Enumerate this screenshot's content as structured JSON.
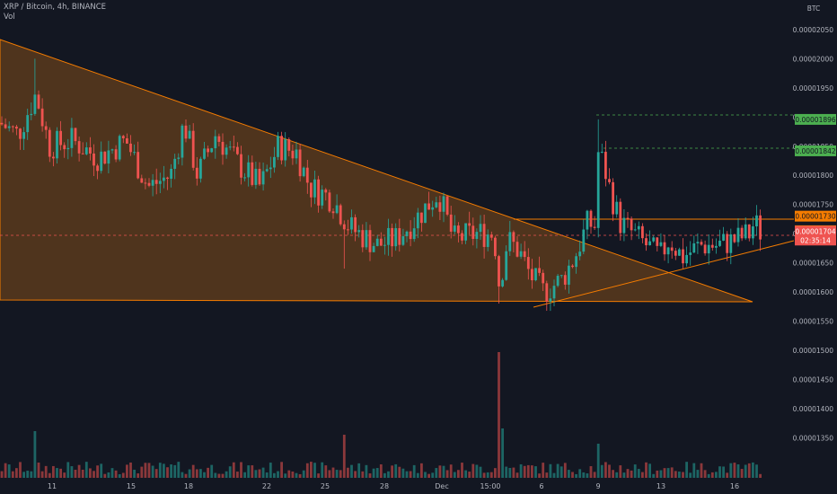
{
  "header": {
    "title": "XRP / Bitcoin, 4h, BINANCE",
    "volume_label": "Vol"
  },
  "chart_data": {
    "type": "candlestick",
    "symbol": "XRP / Bitcoin",
    "interval": "4h",
    "exchange": "BINANCE",
    "currency": "BTC",
    "ylim": [
      1.315e-05,
      2.07e-05
    ],
    "y_ticks": [
      "0.00002050",
      "0.00002000",
      "0.00001950",
      "0.00001900",
      "0.00001850",
      "0.00001800",
      "0.00001750",
      "0.00001700",
      "0.00001650",
      "0.00001600",
      "0.00001550",
      "0.00001500",
      "0.00001450",
      "0.00001400",
      "0.00001350"
    ],
    "x_ticks": [
      "11",
      "15",
      "18",
      "22",
      "25",
      "28",
      "Dec",
      "15:00",
      "6",
      "9",
      "13",
      "16"
    ],
    "price_labels": [
      {
        "text": "0.00001896",
        "value": 1.896e-05,
        "color": "#4caf50",
        "text_color": "#131722"
      },
      {
        "text": "0.00001842",
        "value": 1.842e-05,
        "color": "#4caf50",
        "text_color": "#131722"
      },
      {
        "text": "0.00001730",
        "value": 1.73e-05,
        "color": "#f57c00",
        "text_color": "#131722"
      },
      {
        "text": "0.00001705",
        "value": 1.705e-05,
        "color": "#f57c00",
        "text_color": "#131722"
      },
      {
        "text": "0.00001704",
        "value": 1.704e-05,
        "color": "#ef5350",
        "text_color": "#ffffff"
      },
      {
        "text": "02:35:14",
        "value": 1.689e-05,
        "color": "#ef5350",
        "text_color": "#ffffff"
      }
    ],
    "colors": {
      "background": "#131722",
      "up": "#26a69a",
      "down": "#ef5350",
      "triangle_fill": "#5a3a1c",
      "trendline": "#f57c00",
      "axis_text": "#b2b5be"
    },
    "grid": false
  }
}
